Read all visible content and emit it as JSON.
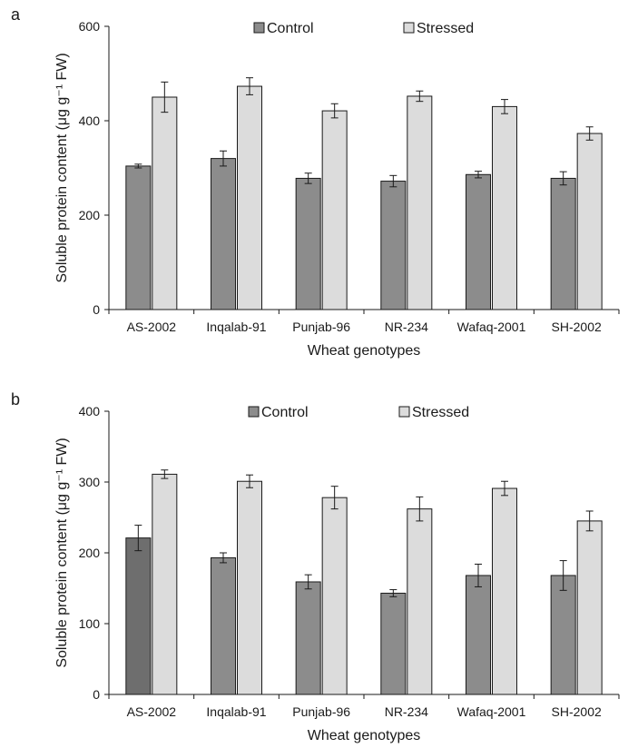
{
  "chart_data": [
    {
      "type": "bar",
      "panel_label": "a",
      "categories": [
        "AS-2002",
        "Inqalab-91",
        "Punjab-96",
        "NR-234",
        "Wafaq-2001",
        "SH-2002"
      ],
      "series": [
        {
          "name": "Control",
          "values": [
            304,
            320,
            278,
            272,
            286,
            278
          ],
          "errors": [
            4,
            16,
            11,
            12,
            7,
            14
          ],
          "color": "#8c8c8c"
        },
        {
          "name": "Stressed",
          "values": [
            450,
            473,
            421,
            452,
            430,
            373
          ],
          "errors": [
            32,
            18,
            15,
            11,
            15,
            14
          ],
          "color": "#dcdcdc"
        }
      ],
      "xlabel": "Wheat genotypes",
      "ylabel": "Soluble protein content (μg g⁻¹ FW)",
      "ylim": [
        0,
        600
      ],
      "yticks": [
        "0",
        "200",
        "400",
        "600"
      ],
      "legend_position": "top-center",
      "grid": false
    },
    {
      "type": "bar",
      "panel_label": "b",
      "categories": [
        "AS-2002",
        "Inqalab-91",
        "Punjab-96",
        "NR-234",
        "Wafaq-2001",
        "SH-2002"
      ],
      "series": [
        {
          "name": "Control",
          "values": [
            221,
            193,
            159,
            143,
            168,
            168
          ],
          "errors": [
            18,
            7,
            10,
            5,
            16,
            21
          ],
          "color": "#8c8c8c",
          "highlight_color": "#6e6e6e"
        },
        {
          "name": "Stressed",
          "values": [
            311,
            301,
            278,
            262,
            291,
            245
          ],
          "errors": [
            6,
            9,
            16,
            17,
            10,
            14
          ],
          "color": "#dcdcdc"
        }
      ],
      "xlabel": "Wheat genotypes",
      "ylabel": "Soluble protein content (μg g⁻¹ FW)",
      "ylim": [
        0,
        400
      ],
      "yticks": [
        "0",
        "100",
        "200",
        "300",
        "400"
      ],
      "legend_position": "top-center",
      "grid": false
    }
  ]
}
